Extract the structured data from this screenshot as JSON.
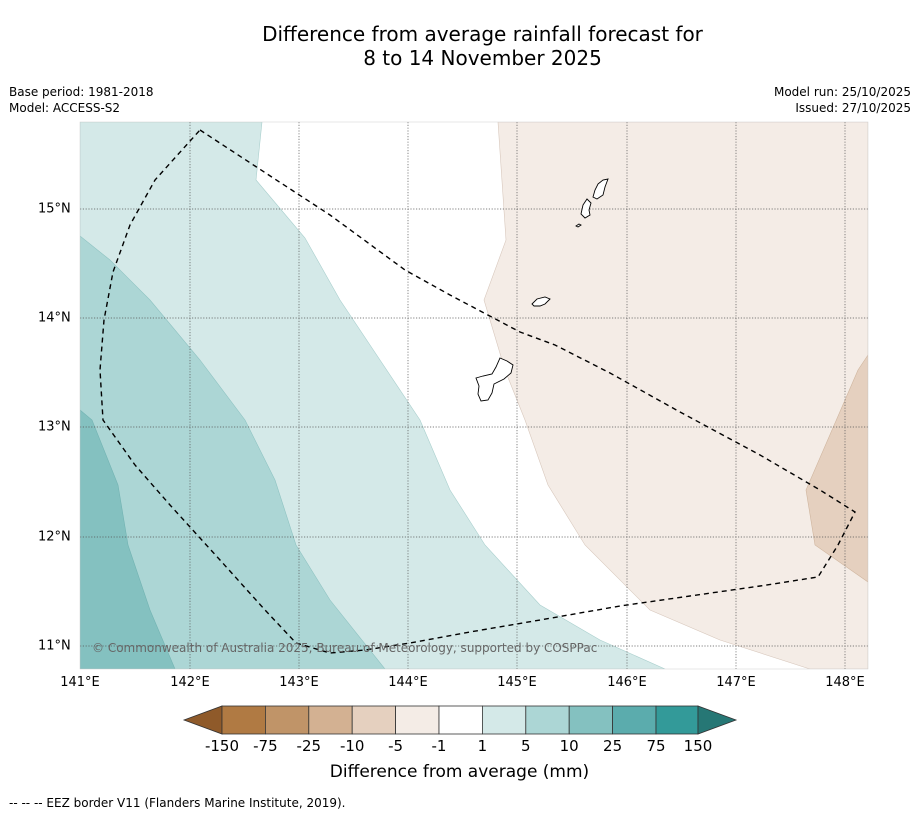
{
  "title": {
    "line1": "Difference from average rainfall forecast for",
    "line2": "8 to 14 November 2025"
  },
  "meta_left": {
    "base_period": "Base period: 1981-2018",
    "model": "Model: ACCESS-S2"
  },
  "meta_right": {
    "model_run": "Model run: 25/10/2025",
    "issued": "Issued: 27/10/2025"
  },
  "map": {
    "x_ticks": [
      "141°E",
      "142°E",
      "143°E",
      "144°E",
      "145°E",
      "146°E",
      "147°E",
      "148°E"
    ],
    "y_ticks": [
      "15°N",
      "14°N",
      "13°N",
      "12°N",
      "11°N"
    ],
    "copyright": "© Commonwealth of Australia 2025, Bureau of Meteorology, supported by COSPPac"
  },
  "colorbar": {
    "tick_labels": [
      "-150",
      "-75",
      "-25",
      "-10",
      "-5",
      "-1",
      "1",
      "5",
      "10",
      "25",
      "75",
      "150"
    ],
    "colors": [
      "#8f5a2a",
      "#b07a43",
      "#c09468",
      "#d3b192",
      "#e5d0bf",
      "#f4ece6",
      "#ffffff",
      "#d4e9e8",
      "#acd6d5",
      "#84c1c0",
      "#5bacad",
      "#339a99",
      "#267775"
    ],
    "label": "Difference from average (mm)"
  },
  "footnote": "--  --  -- EEZ border V11 (Flanders Marine Institute, 2019)."
}
